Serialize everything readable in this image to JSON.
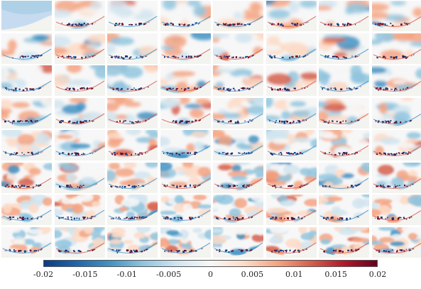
{
  "figure": {
    "grid_rows": 8,
    "grid_cols": 8,
    "colormap": [
      "#0b3b86",
      "#2166ac",
      "#4393c3",
      "#92c5de",
      "#d1e5f0",
      "#f7f7f7",
      "#fddbc7",
      "#f4a582",
      "#d6604d",
      "#b2182b",
      "#67001f"
    ]
  },
  "colorbar": {
    "range": [
      -0.02,
      0.02
    ],
    "ticks": [
      "-0.02",
      "-0.015",
      "-0.01",
      "-0.005",
      "0",
      "0.005",
      "0.01",
      "0.015",
      "0.02"
    ]
  }
}
